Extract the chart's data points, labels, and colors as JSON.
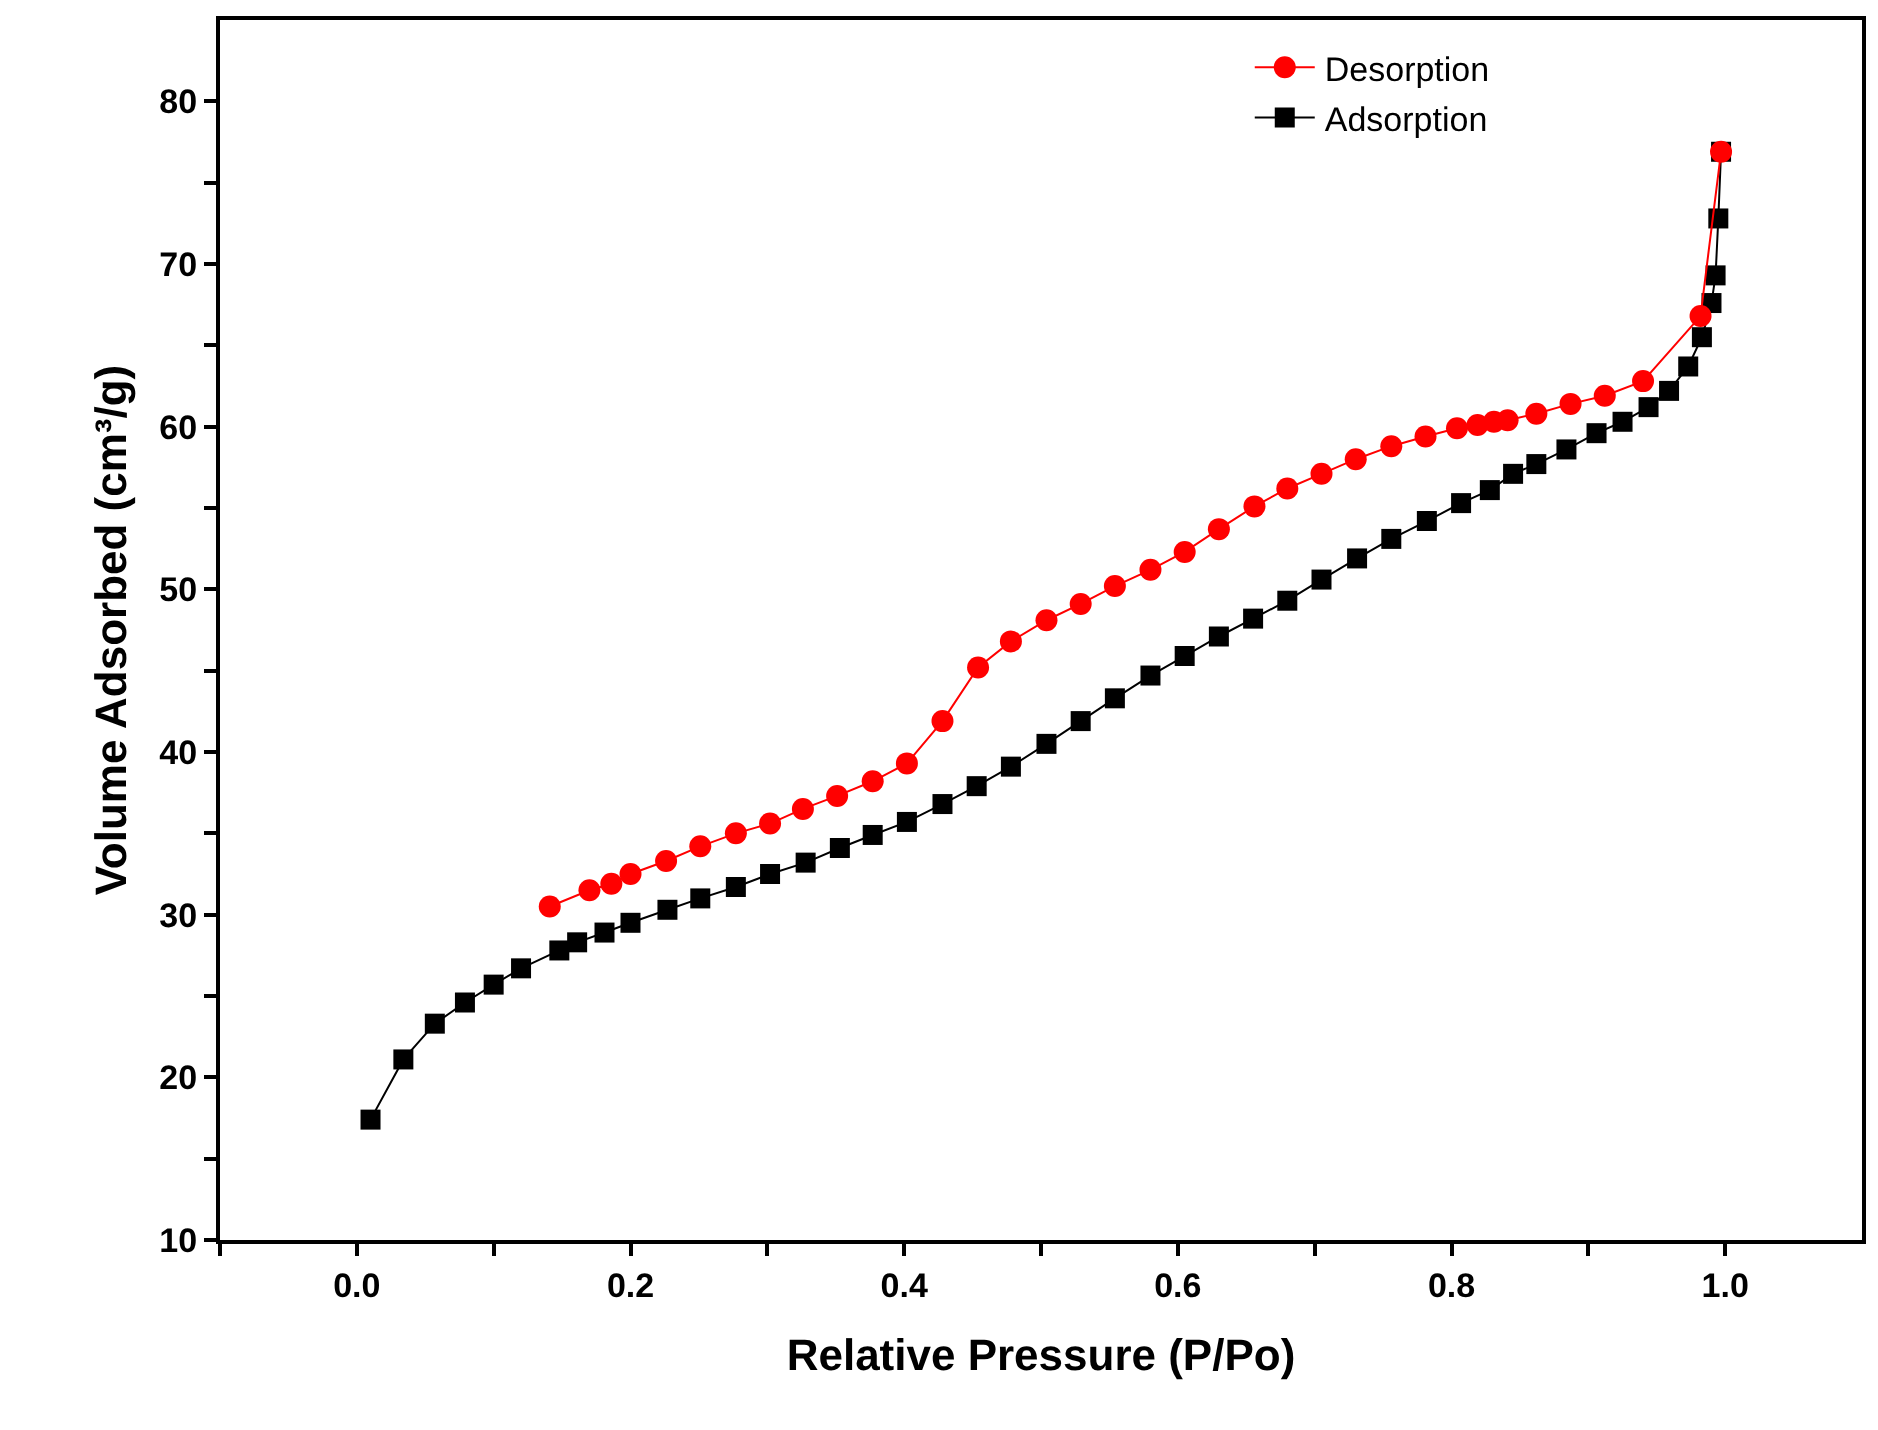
{
  "chart_data": {
    "type": "line",
    "xlabel": "Relative Pressure (P/Po)",
    "ylabel": "Volume Adsorbed (cm³/g)",
    "xlim": [
      -0.1,
      1.1
    ],
    "ylim": [
      10,
      85
    ],
    "xticks": [
      {
        "value": -0.1,
        "label": null
      },
      {
        "value": 0,
        "label": "0.0"
      },
      {
        "value": 0.1,
        "label": null
      },
      0.2,
      {
        "value": 0.3,
        "label": null
      },
      0.4,
      {
        "value": 0.5,
        "label": null
      },
      0.6,
      {
        "value": 0.7,
        "label": null
      },
      0.8,
      {
        "value": 0.9,
        "label": null
      },
      {
        "value": 1,
        "label": "1.0"
      }
    ],
    "yticks": [
      10,
      {
        "value": 15,
        "label": null
      },
      20,
      {
        "value": 25,
        "label": null
      },
      30,
      {
        "value": 35,
        "label": null
      },
      40,
      {
        "value": 45,
        "label": null
      },
      50,
      {
        "value": 55,
        "label": null
      },
      60,
      {
        "value": 65,
        "label": null
      },
      70,
      {
        "value": 75,
        "label": null
      },
      80
    ],
    "legend": "top right",
    "line_style": "solid",
    "series": [
      {
        "name": "Desorption",
        "color": "#ff0000",
        "marker": "circle",
        "x": [
          0.141,
          0.17,
          0.186,
          0.2,
          0.226,
          0.251,
          0.277,
          0.302,
          0.326,
          0.351,
          0.377,
          0.402,
          0.428,
          0.454,
          0.478,
          0.504,
          0.529,
          0.554,
          0.58,
          0.605,
          0.63,
          0.656,
          0.68,
          0.705,
          0.73,
          0.756,
          0.781,
          0.804,
          0.819,
          0.831,
          0.841,
          0.862,
          0.887,
          0.912,
          0.94,
          0.982,
          0.997
        ],
        "values": [
          30.5,
          31.5,
          31.9,
          32.5,
          33.3,
          34.2,
          35.0,
          35.6,
          36.5,
          37.3,
          38.2,
          39.3,
          41.9,
          45.2,
          46.8,
          48.1,
          49.1,
          50.2,
          51.2,
          52.3,
          53.7,
          55.1,
          56.2,
          57.1,
          58.0,
          58.8,
          59.4,
          59.9,
          60.1,
          60.3,
          60.4,
          60.8,
          61.4,
          61.9,
          62.8,
          66.8,
          76.9
        ]
      },
      {
        "name": "Adsorption",
        "color": "#000000",
        "marker": "square",
        "x": [
          0.01,
          0.034,
          0.057,
          0.079,
          0.1,
          0.12,
          0.148,
          0.161,
          0.181,
          0.2,
          0.227,
          0.251,
          0.277,
          0.302,
          0.328,
          0.353,
          0.377,
          0.402,
          0.428,
          0.453,
          0.478,
          0.504,
          0.529,
          0.554,
          0.58,
          0.605,
          0.63,
          0.655,
          0.68,
          0.705,
          0.731,
          0.756,
          0.782,
          0.807,
          0.828,
          0.845,
          0.862,
          0.884,
          0.906,
          0.925,
          0.944,
          0.959,
          0.973,
          0.983,
          0.99,
          0.993,
          0.995,
          0.997
        ],
        "values": [
          17.4,
          21.1,
          23.3,
          24.6,
          25.7,
          26.7,
          27.8,
          28.3,
          28.9,
          29.5,
          30.3,
          31.0,
          31.7,
          32.5,
          33.2,
          34.1,
          34.9,
          35.7,
          36.8,
          37.9,
          39.1,
          40.5,
          41.9,
          43.3,
          44.7,
          45.9,
          47.1,
          48.2,
          49.3,
          50.6,
          51.9,
          53.1,
          54.2,
          55.3,
          56.1,
          57.1,
          57.7,
          58.6,
          59.6,
          60.3,
          61.2,
          62.2,
          63.7,
          65.5,
          67.6,
          69.3,
          72.8,
          76.9
        ]
      }
    ]
  }
}
